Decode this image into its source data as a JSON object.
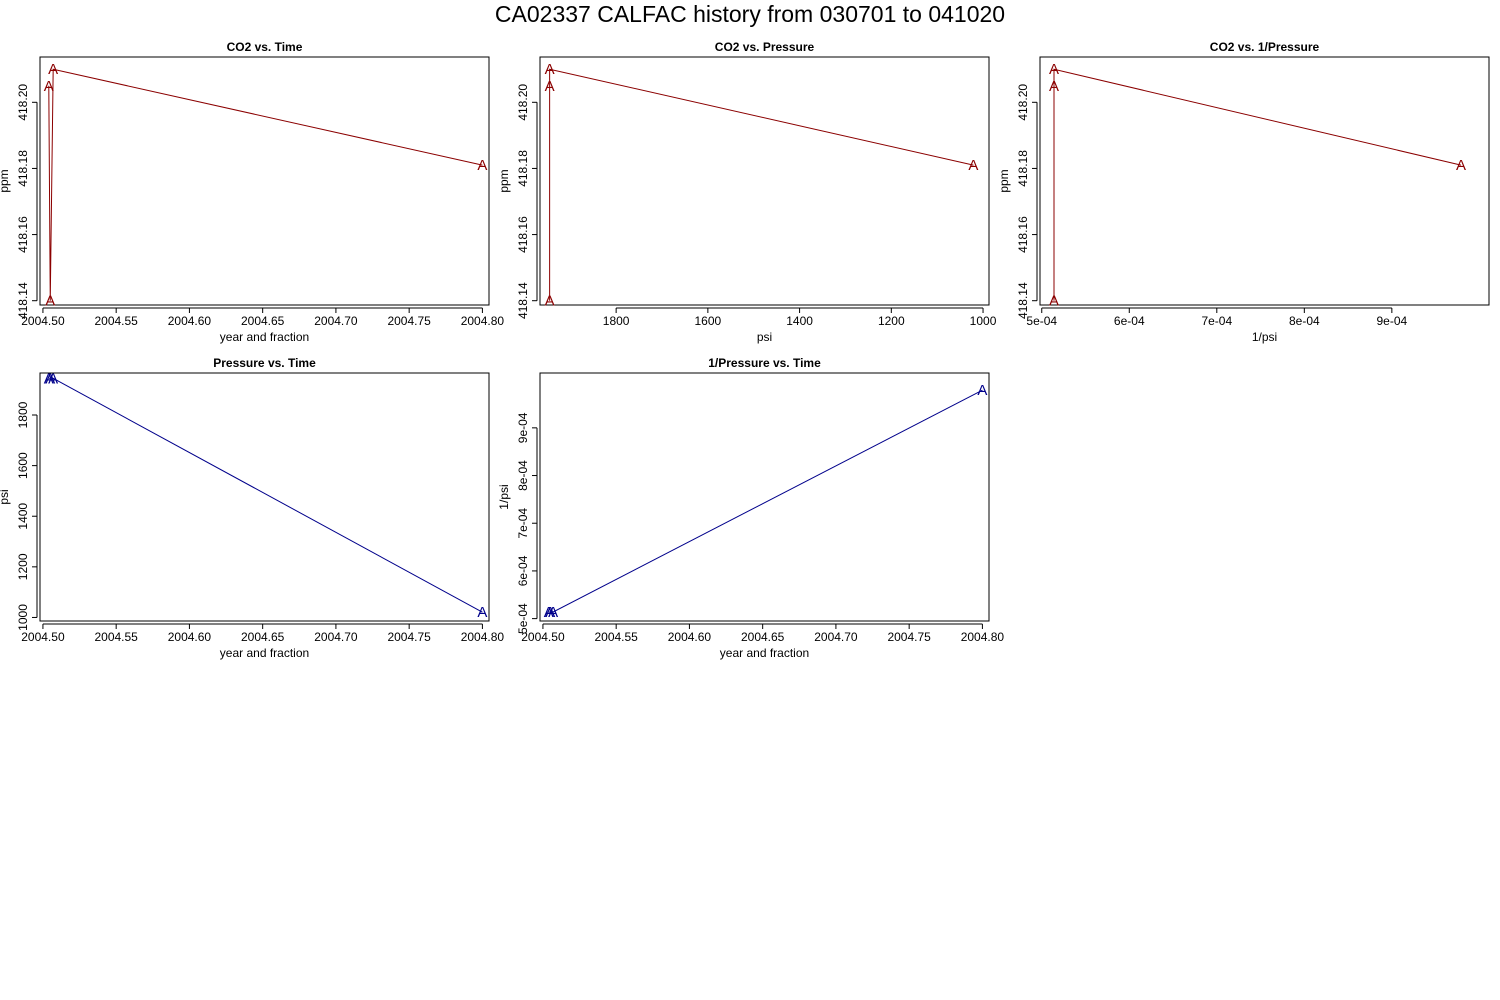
{
  "figure_title": "CA02337   CALFAC history from  030701  to  041020",
  "colors": {
    "co2": "#8b0000",
    "pressure": "#00008b"
  },
  "marker": "A",
  "chart_data": [
    {
      "type": "line",
      "title": "CO2 vs. Time",
      "xlabel": "year and fraction",
      "ylabel": "ppm",
      "color": "co2",
      "x_reversed": false,
      "xlim": [
        2004.498,
        2004.8045
      ],
      "ylim": [
        418.1387,
        418.2137
      ],
      "xticks": [
        2004.5,
        2004.55,
        2004.6,
        2004.65,
        2004.7,
        2004.75,
        2004.8
      ],
      "xtick_labels": [
        "2004.50",
        "2004.55",
        "2004.60",
        "2004.65",
        "2004.70",
        "2004.75",
        "2004.80"
      ],
      "yticks": [
        418.14,
        418.16,
        418.18,
        418.2
      ],
      "ytick_labels": [
        "418.14",
        "418.16",
        "418.18",
        "418.20"
      ],
      "x": [
        2004.504,
        2004.505,
        2004.507,
        2004.8
      ],
      "y": [
        418.205,
        418.14,
        418.21,
        418.181
      ]
    },
    {
      "type": "line",
      "title": "CO2 vs. Pressure",
      "xlabel": "psi",
      "ylabel": "ppm",
      "color": "co2",
      "x_reversed": true,
      "xlim": [
        1966,
        987
      ],
      "ylim": [
        418.1387,
        418.2137
      ],
      "xticks": [
        1800,
        1600,
        1400,
        1200,
        1000
      ],
      "xtick_labels": [
        "1800",
        "1600",
        "1400",
        "1200",
        "1000"
      ],
      "yticks": [
        418.14,
        418.16,
        418.18,
        418.2
      ],
      "ytick_labels": [
        "418.14",
        "418.16",
        "418.18",
        "418.20"
      ],
      "x": [
        1945,
        1945,
        1945,
        1021
      ],
      "y": [
        418.205,
        418.14,
        418.21,
        418.181
      ]
    },
    {
      "type": "line",
      "title": "CO2 vs. 1/Pressure",
      "xlabel": "1/psi",
      "ylabel": "ppm",
      "color": "co2",
      "x_reversed": false,
      "xlim": [
        0.000498,
        0.001011
      ],
      "ylim": [
        418.1387,
        418.2137
      ],
      "xticks": [
        0.0005,
        0.0006,
        0.0007,
        0.0008,
        0.0009
      ],
      "xtick_labels": [
        "5e-04",
        "6e-04",
        "7e-04",
        "8e-04",
        "9e-04"
      ],
      "yticks": [
        418.14,
        418.16,
        418.18,
        418.2
      ],
      "ytick_labels": [
        "418.14",
        "418.16",
        "418.18",
        "418.20"
      ],
      "x": [
        0.000514,
        0.000514,
        0.000514,
        0.000979
      ],
      "y": [
        418.205,
        418.14,
        418.21,
        418.181
      ]
    },
    {
      "type": "line",
      "title": "Pressure vs. Time",
      "xlabel": "year and fraction",
      "ylabel": "psi",
      "color": "pressure",
      "x_reversed": false,
      "xlim": [
        2004.498,
        2004.8045
      ],
      "ylim": [
        986,
        1966
      ],
      "xticks": [
        2004.5,
        2004.55,
        2004.6,
        2004.65,
        2004.7,
        2004.75,
        2004.8
      ],
      "xtick_labels": [
        "2004.50",
        "2004.55",
        "2004.60",
        "2004.65",
        "2004.70",
        "2004.75",
        "2004.80"
      ],
      "yticks": [
        1000,
        1200,
        1400,
        1600,
        1800
      ],
      "ytick_labels": [
        "1000",
        "1200",
        "1400",
        "1600",
        "1800"
      ],
      "x": [
        2004.504,
        2004.505,
        2004.507,
        2004.8
      ],
      "y": [
        1945,
        1945,
        1945,
        1021
      ]
    },
    {
      "type": "line",
      "title": "1/Pressure vs. Time",
      "xlabel": "year and fraction",
      "ylabel": "1/psi",
      "color": "pressure",
      "x_reversed": false,
      "xlim": [
        2004.498,
        2004.8045
      ],
      "ylim": [
        0.000495,
        0.001015
      ],
      "xticks": [
        2004.5,
        2004.55,
        2004.6,
        2004.65,
        2004.7,
        2004.75,
        2004.8
      ],
      "xtick_labels": [
        "2004.50",
        "2004.55",
        "2004.60",
        "2004.65",
        "2004.70",
        "2004.75",
        "2004.80"
      ],
      "yticks": [
        0.0005,
        0.0006,
        0.0007,
        0.0008,
        0.0009
      ],
      "ytick_labels": [
        "5e-04",
        "6e-04",
        "7e-04",
        "8e-04",
        "9e-04"
      ],
      "x": [
        2004.504,
        2004.505,
        2004.507,
        2004.8
      ],
      "y": [
        0.000514,
        0.000514,
        0.000514,
        0.000979
      ]
    }
  ]
}
